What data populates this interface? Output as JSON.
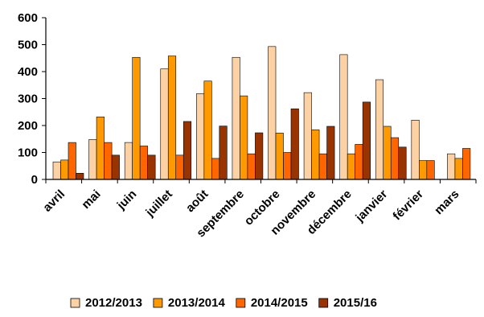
{
  "chart_data": {
    "type": "bar",
    "title": "",
    "xlabel": "",
    "ylabel": "",
    "ylim": [
      0,
      600
    ],
    "yticks": [
      0,
      100,
      200,
      300,
      400,
      500,
      600
    ],
    "grid": false,
    "legend_position": "bottom",
    "categories": [
      "avril",
      "mai",
      "juin",
      "juillet",
      "août",
      "septembre",
      "octobre",
      "novembre",
      "décembre",
      "janvier",
      "février",
      "mars"
    ],
    "series": [
      {
        "name": "2012/2013",
        "color": "#fcd2a5",
        "values": [
          65,
          148,
          137,
          410,
          318,
          453,
          493,
          322,
          463,
          370,
          220,
          95
        ]
      },
      {
        "name": "2013/2014",
        "color": "#ff9900",
        "values": [
          72,
          232,
          453,
          458,
          365,
          310,
          172,
          184,
          95,
          197,
          70,
          78
        ]
      },
      {
        "name": "2014/2015",
        "color": "#ff6600",
        "values": [
          137,
          137,
          124,
          90,
          78,
          95,
          100,
          95,
          130,
          155,
          70,
          115
        ]
      },
      {
        "name": "2015/16",
        "color": "#993300",
        "values": [
          23,
          90,
          90,
          215,
          198,
          173,
          262,
          197,
          287,
          120,
          null,
          null
        ]
      }
    ]
  }
}
